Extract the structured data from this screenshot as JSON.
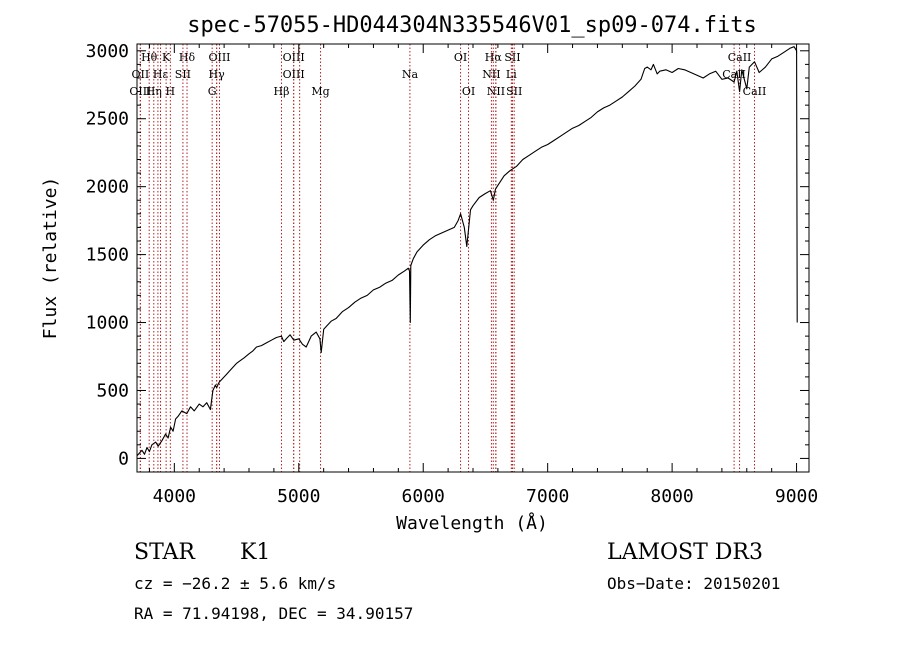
{
  "chart_data": {
    "type": "line",
    "title": "spec-57055-HD044304N335546V01_sp09-074.fits",
    "xlabel": "Wavelength (Å)",
    "ylabel": "Flux (relative)",
    "xlim": [
      3700,
      9100
    ],
    "ylim": [
      -100,
      3050
    ],
    "x_ticks": [
      4000,
      5000,
      6000,
      7000,
      8000,
      9000
    ],
    "y_ticks": [
      0,
      500,
      1000,
      1500,
      2000,
      2500,
      3000
    ],
    "grid": false,
    "series": [
      {
        "name": "flux",
        "x": [
          3700,
          3720,
          3740,
          3760,
          3780,
          3800,
          3820,
          3850,
          3870,
          3900,
          3930,
          3950,
          3970,
          3990,
          4010,
          4030,
          4060,
          4100,
          4130,
          4160,
          4200,
          4230,
          4260,
          4290,
          4310,
          4330,
          4340,
          4360,
          4380,
          4420,
          4450,
          4480,
          4500,
          4530,
          4560,
          4600,
          4630,
          4660,
          4700,
          4740,
          4780,
          4820,
          4860,
          4880,
          4900,
          4930,
          4960,
          5000,
          5030,
          5060,
          5100,
          5140,
          5170,
          5180,
          5200,
          5230,
          5260,
          5300,
          5350,
          5400,
          5450,
          5500,
          5550,
          5600,
          5650,
          5700,
          5750,
          5800,
          5850,
          5880,
          5890,
          5896,
          5900,
          5920,
          5950,
          6000,
          6050,
          6100,
          6150,
          6200,
          6250,
          6280,
          6300,
          6330,
          6350,
          6380,
          6400,
          6450,
          6500,
          6540,
          6563,
          6580,
          6600,
          6650,
          6700,
          6750,
          6800,
          6850,
          6900,
          6950,
          7000,
          7050,
          7100,
          7150,
          7200,
          7250,
          7300,
          7350,
          7400,
          7450,
          7500,
          7550,
          7600,
          7650,
          7700,
          7750,
          7780,
          7800,
          7830,
          7850,
          7880,
          7900,
          7950,
          8000,
          8050,
          8100,
          8150,
          8200,
          8250,
          8300,
          8350,
          8400,
          8450,
          8498,
          8520,
          8542,
          8560,
          8600,
          8620,
          8662,
          8700,
          8750,
          8800,
          8850,
          8900,
          8950,
          8980,
          9000,
          9005
        ],
        "y": [
          20,
          40,
          60,
          30,
          80,
          50,
          100,
          120,
          90,
          130,
          180,
          150,
          230,
          200,
          290,
          310,
          350,
          330,
          380,
          350,
          400,
          380,
          410,
          360,
          500,
          540,
          520,
          560,
          580,
          620,
          650,
          680,
          700,
          720,
          740,
          770,
          790,
          820,
          830,
          850,
          870,
          890,
          900,
          860,
          880,
          910,
          870,
          880,
          840,
          820,
          900,
          930,
          880,
          780,
          950,
          980,
          1010,
          1030,
          1080,
          1110,
          1150,
          1180,
          1200,
          1240,
          1260,
          1290,
          1310,
          1350,
          1380,
          1400,
          1380,
          1000,
          1420,
          1470,
          1520,
          1570,
          1610,
          1640,
          1660,
          1680,
          1700,
          1750,
          1800,
          1700,
          1560,
          1830,
          1860,
          1920,
          1950,
          1970,
          1900,
          1980,
          2010,
          2080,
          2120,
          2150,
          2200,
          2230,
          2260,
          2290,
          2310,
          2340,
          2370,
          2400,
          2430,
          2450,
          2480,
          2510,
          2550,
          2580,
          2600,
          2630,
          2660,
          2700,
          2740,
          2790,
          2870,
          2880,
          2860,
          2900,
          2830,
          2850,
          2860,
          2840,
          2870,
          2860,
          2840,
          2820,
          2800,
          2830,
          2850,
          2790,
          2800,
          2770,
          2850,
          2700,
          2860,
          2720,
          2880,
          2920,
          2840,
          2880,
          2940,
          2960,
          2990,
          3020,
          3030,
          3000,
          1000
        ]
      }
    ],
    "lines": [
      {
        "name": "Hθ",
        "wavelength": 3798,
        "row": 1,
        "show": true
      },
      {
        "name": "OII",
        "wavelength": 3727,
        "row": 2,
        "show": true
      },
      {
        "name": "OIII",
        "wavelength": 3727,
        "row": 3,
        "show": true
      },
      {
        "name": "K",
        "wavelength": 3934,
        "row": 1,
        "show": true
      },
      {
        "name": "Hε",
        "wavelength": 3889,
        "row": 2,
        "show": true
      },
      {
        "name": "Hη",
        "wavelength": 3835,
        "row": 3,
        "show": true
      },
      {
        "name": "SII",
        "wavelength": 4069,
        "row": 2,
        "show": true
      },
      {
        "name": "H",
        "wavelength": 3968,
        "row": 3,
        "show": true
      },
      {
        "name": "Hδ",
        "wavelength": 4102,
        "row": 1,
        "show": true
      },
      {
        "name": "OIII",
        "wavelength": 4363,
        "row": 1,
        "show": true
      },
      {
        "name": "Hγ",
        "wavelength": 4340,
        "row": 2,
        "show": true
      },
      {
        "name": "G",
        "wavelength": 4304,
        "row": 3,
        "show": true
      },
      {
        "name": "OIII",
        "wavelength": 4959,
        "row": 1,
        "show": true
      },
      {
        "name": "OIII",
        "wavelength": 4959,
        "row": 2,
        "show": true
      },
      {
        "name": "Hβ",
        "wavelength": 4861,
        "row": 3,
        "show": true
      },
      {
        "name": "Mg",
        "wavelength": 5175,
        "row": 3,
        "show": true
      },
      {
        "name": "Na",
        "wavelength": 5893,
        "row": 2,
        "show": true
      },
      {
        "name": "OI",
        "wavelength": 6300,
        "row": 1,
        "show": true
      },
      {
        "name": "OI",
        "wavelength": 6364,
        "row": 3,
        "show": true
      },
      {
        "name": "Hα",
        "wavelength": 6563,
        "row": 1,
        "show": true
      },
      {
        "name": "SII",
        "wavelength": 6717,
        "row": 1,
        "show": true
      },
      {
        "name": "NII",
        "wavelength": 6548,
        "row": 2,
        "show": true
      },
      {
        "name": "Li",
        "wavelength": 6708,
        "row": 2,
        "show": true
      },
      {
        "name": "NII",
        "wavelength": 6584,
        "row": 3,
        "show": true
      },
      {
        "name": "SII",
        "wavelength": 6731,
        "row": 3,
        "show": true
      },
      {
        "name": "CaII",
        "wavelength": 8542,
        "row": 1,
        "show": true
      },
      {
        "name": "CaII",
        "wavelength": 8498,
        "row": 2,
        "show": true
      },
      {
        "name": "CaII",
        "wavelength": 8662,
        "row": 3,
        "show": true
      },
      {
        "name": "",
        "wavelength": 4340,
        "row": 0,
        "show": false
      },
      {
        "name": "",
        "wavelength": 5007,
        "row": 0,
        "show": false
      },
      {
        "name": "",
        "wavelength": 6583,
        "row": 0,
        "show": false
      },
      {
        "name": "",
        "wavelength": 6716,
        "row": 0,
        "show": false
      },
      {
        "name": "",
        "wavelength": 3889,
        "row": 0,
        "show": false
      },
      {
        "name": "",
        "wavelength": 3868,
        "row": 0,
        "show": false
      }
    ]
  },
  "info": {
    "object_class": "STAR",
    "subclass": "K1",
    "survey": "LAMOST DR3",
    "cz": "cz = −26.2 ± 5.6 km/s",
    "obs_date": "Obs−Date: 20150201",
    "coords": "RA =  71.94198, DEC =  34.90157"
  },
  "colors": {
    "spectrum": "#000000",
    "line_marker": "#b22222",
    "axis": "#000000"
  }
}
